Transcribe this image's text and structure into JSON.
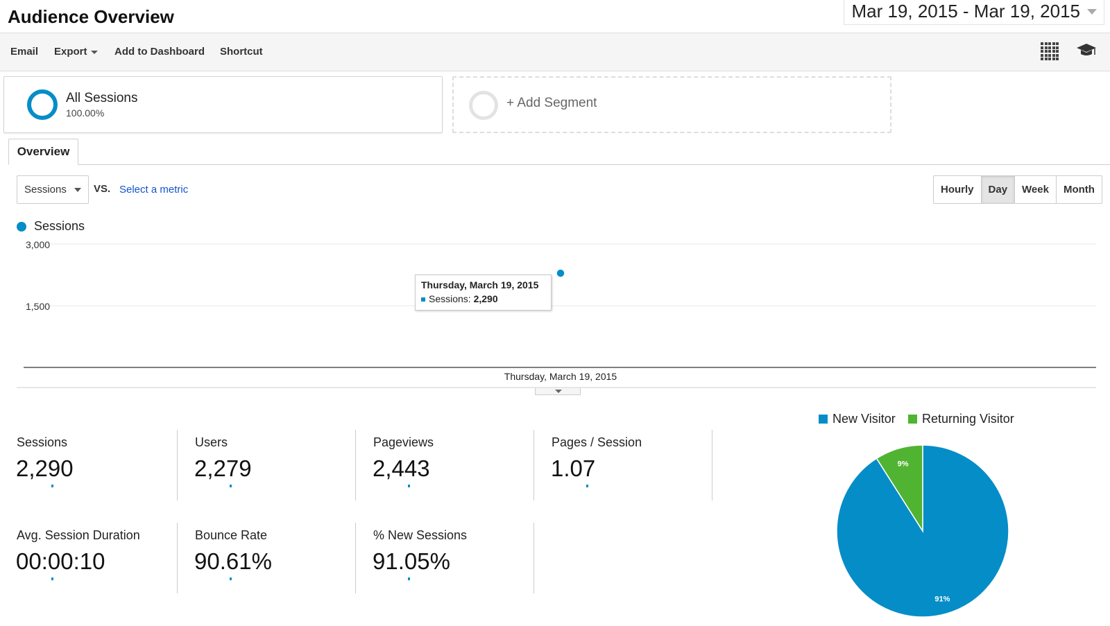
{
  "header": {
    "title": "Audience Overview",
    "date_range": "Mar 19, 2015 - Mar 19, 2015"
  },
  "toolbar": {
    "email": "Email",
    "export": "Export",
    "add_to_dashboard": "Add to Dashboard",
    "shortcut": "Shortcut",
    "icons": [
      "grid-icon",
      "graduation-cap-icon"
    ]
  },
  "segments": {
    "all_sessions": {
      "name": "All Sessions",
      "percent": "100.00%"
    },
    "add_segment": "+ Add Segment"
  },
  "tabs": {
    "overview": "Overview"
  },
  "metric_selector": {
    "primary": "Sessions",
    "vs": "VS.",
    "select_metric": "Select a metric"
  },
  "period_buttons": [
    {
      "label": "Hourly",
      "active": false
    },
    {
      "label": "Day",
      "active": true
    },
    {
      "label": "Week",
      "active": false
    },
    {
      "label": "Month",
      "active": false
    }
  ],
  "chart_data": {
    "type": "line",
    "series": [
      {
        "name": "Sessions",
        "color": "#058dc7",
        "values": [
          2290
        ]
      }
    ],
    "x": [
      "Thursday, March 19, 2015"
    ],
    "y_ticks": [
      "3,000",
      "1,500"
    ],
    "ylim": [
      0,
      3000
    ],
    "grid": true,
    "tooltip": {
      "title": "Thursday, March 19, 2015",
      "label": "Sessions:",
      "value": "2,290"
    }
  },
  "scorecards": [
    {
      "label": "Sessions",
      "value": "2,290"
    },
    {
      "label": "Users",
      "value": "2,279"
    },
    {
      "label": "Pageviews",
      "value": "2,443"
    },
    {
      "label": "Pages / Session",
      "value": "1.07"
    },
    {
      "label": "Avg. Session Duration",
      "value": "00:00:10"
    },
    {
      "label": "Bounce Rate",
      "value": "90.61%"
    },
    {
      "label": "% New Sessions",
      "value": "91.05%"
    }
  ],
  "pie": {
    "chart_data": {
      "type": "pie",
      "categories": [
        "New Visitor",
        "Returning Visitor"
      ],
      "values": [
        91,
        9
      ],
      "labels": [
        "91%",
        "9%"
      ],
      "colors": [
        "#058dc7",
        "#50b432"
      ]
    }
  }
}
